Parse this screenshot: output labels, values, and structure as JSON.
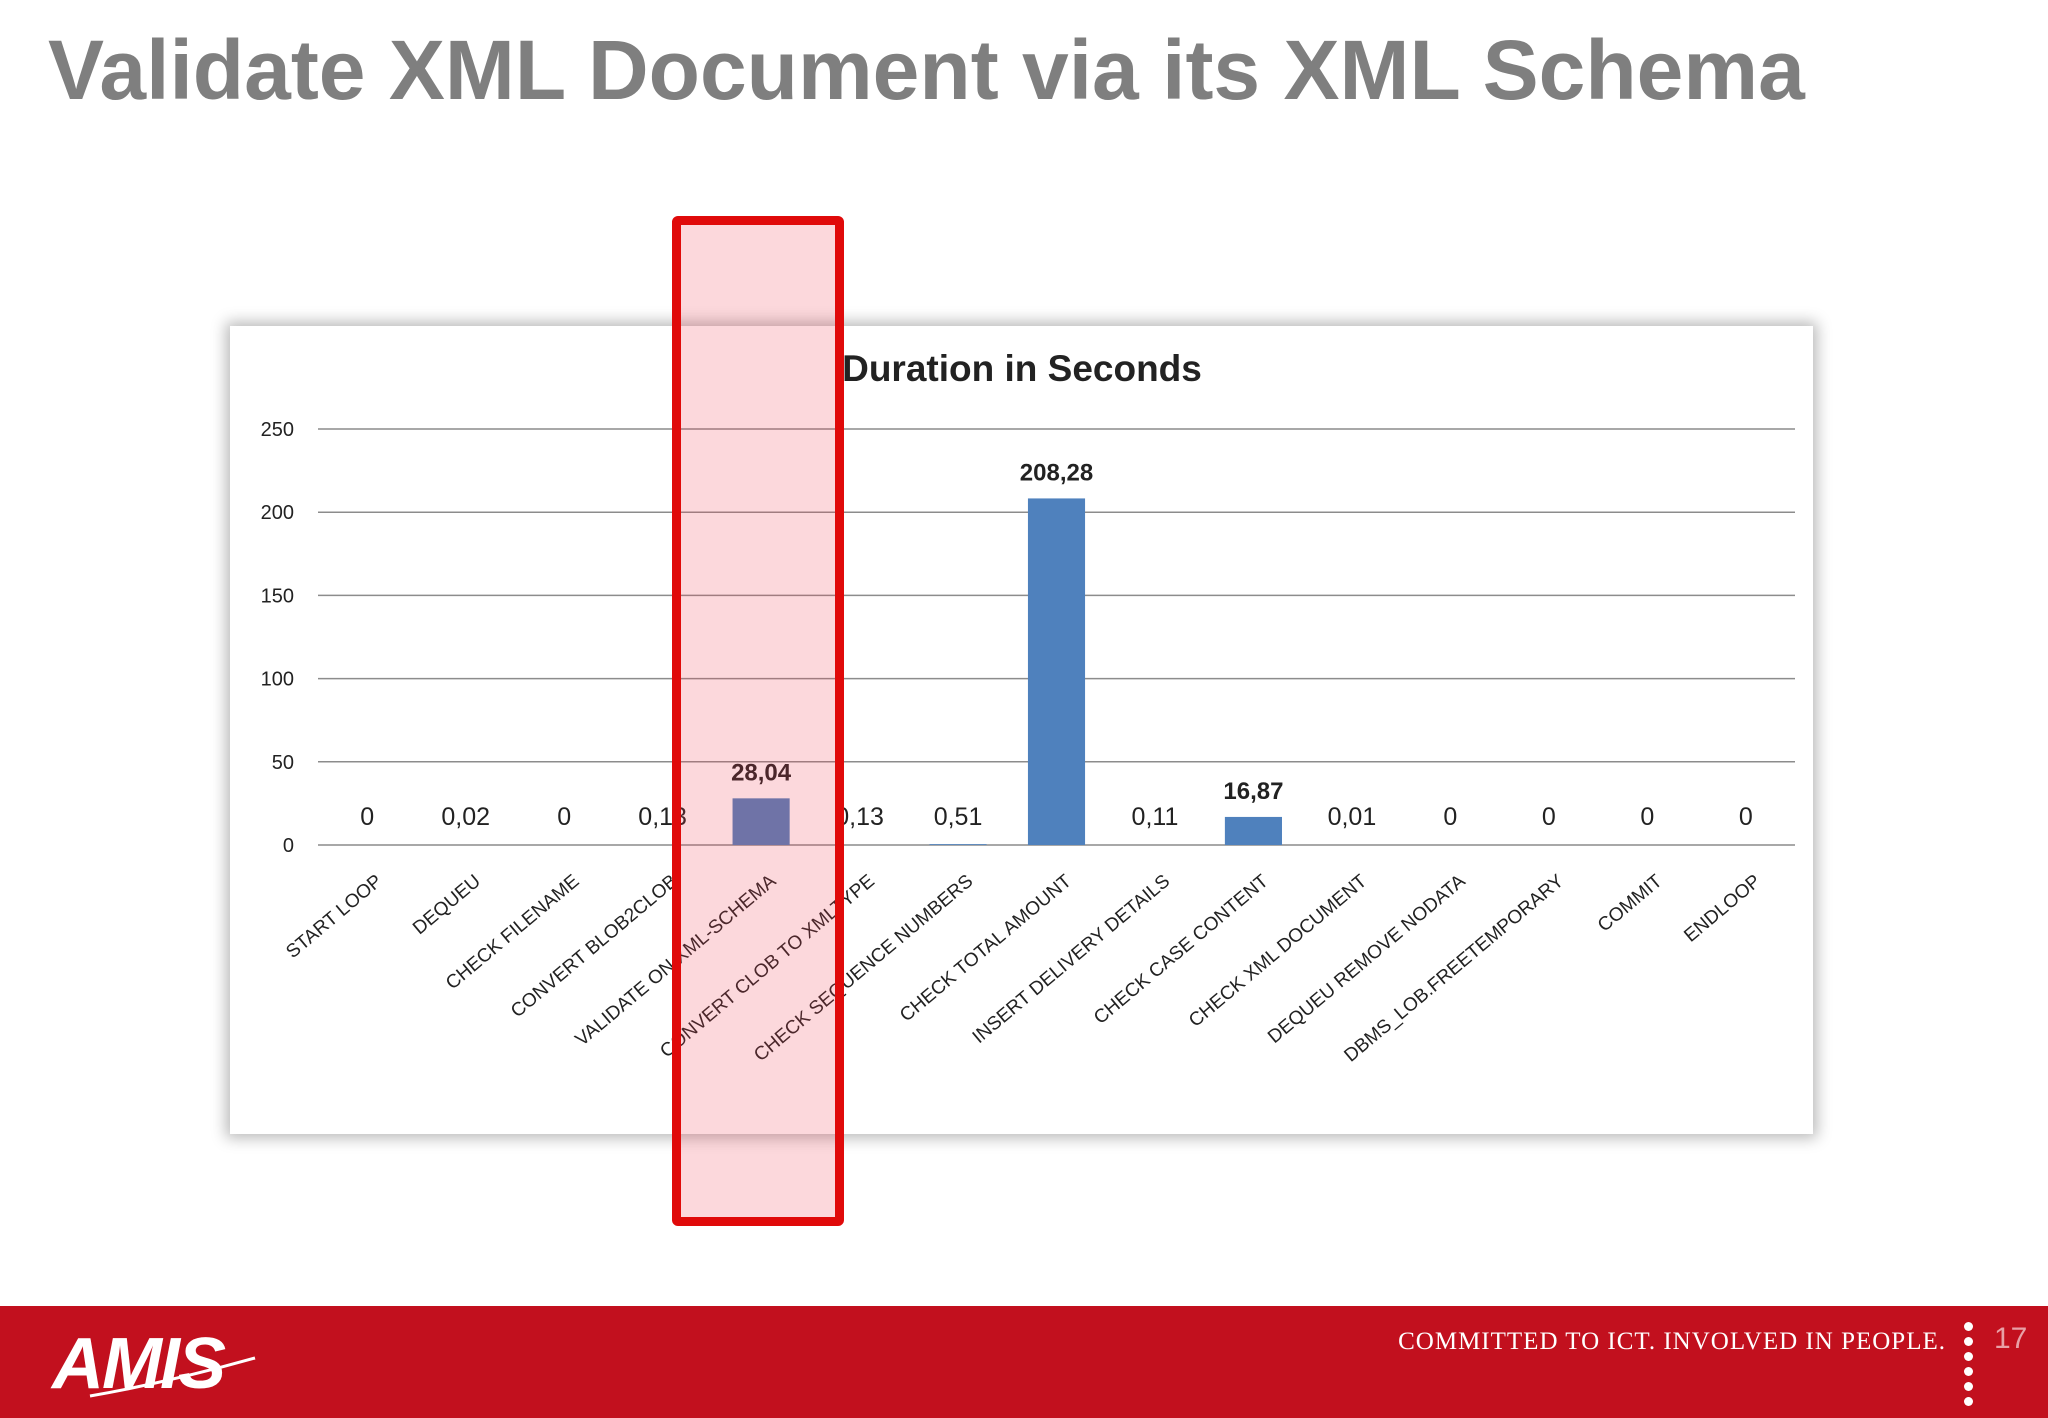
{
  "slide": {
    "title": "Validate XML Document via its XML Schema",
    "page_number": "17"
  },
  "footer": {
    "logo_text": "AMIS",
    "tagline": "COMMITTED TO ICT. INVOLVED IN PEOPLE.",
    "background": "#c2101e"
  },
  "highlight": {
    "category": "VALIDATE ON XML-SCHEMA",
    "border_color": "#e00a0a"
  },
  "chart_data": {
    "type": "bar",
    "title": "Duration in Seconds",
    "xlabel": "",
    "ylabel": "",
    "ylim": [
      0,
      250
    ],
    "yticks": [
      0,
      50,
      100,
      150,
      200,
      250
    ],
    "grid": true,
    "legend": "none",
    "bar_color": "#4f81bd",
    "categories": [
      "START LOOP",
      "DEQUEU",
      "CHECK FILENAME",
      "CONVERT BLOB2CLOB",
      "VALIDATE ON XML-SCHEMA",
      "CONVERT CLOB TO XMLTYPE",
      "CHECK SEQUENCE NUMBERS",
      "CHECK TOTAL AMOUNT",
      "INSERT DELIVERY DETAILS",
      "CHECK CASE CONTENT",
      "CHECK XML DOCUMENT",
      "DEQUEU REMOVE NODATA",
      "DBMS_LOB.FREETEMPORARY",
      "COMMIT",
      "ENDLOOP"
    ],
    "values": [
      0,
      0.02,
      0,
      0.13,
      28.04,
      0.13,
      0.51,
      208.28,
      0.11,
      16.87,
      0.01,
      0,
      0,
      0,
      0
    ],
    "data_labels": [
      "0",
      "0,02",
      "0",
      "0,13",
      "28,04",
      "0,13",
      "0,51",
      "208,28",
      "0,11",
      "16,87",
      "0,01",
      "0",
      "0",
      "0",
      "0"
    ]
  }
}
